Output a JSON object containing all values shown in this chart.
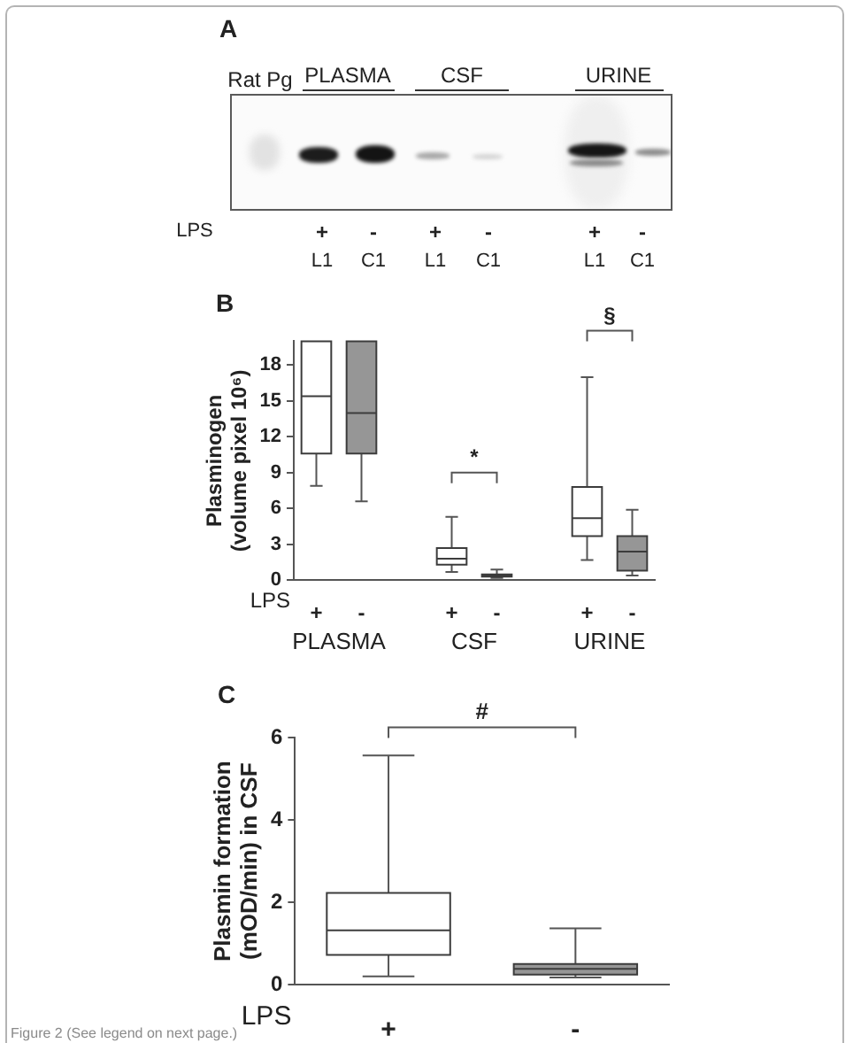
{
  "chart_data": [
    {
      "type": "other",
      "title": "A",
      "annotations": [
        "Rat Pg",
        "PLASMA",
        "CSF",
        "URINE",
        "LPS",
        "+",
        "-",
        "+",
        "-",
        "+",
        "-",
        "L1",
        "C1",
        "L1",
        "C1",
        "L1",
        "C1"
      ]
    },
    {
      "type": "box",
      "title": "B",
      "ylabel": "Plasminogen (volume pixel 10⁶)",
      "xlabel": "LPS",
      "categories": [
        "+",
        "-",
        null,
        "+",
        "-",
        null,
        "+",
        "-"
      ],
      "boxes": [
        {
          "low": 7.9,
          "q1": 10.6,
          "median": 15.4,
          "q3": 20,
          "high": 20
        },
        {
          "low": 6.6,
          "q1": 10.6,
          "median": 14,
          "q3": 20,
          "high": 20
        },
        null,
        {
          "low": 0.7,
          "q1": 1.3,
          "median": 1.8,
          "q3": 2.7,
          "high": 5.3
        },
        {
          "low": 0.2,
          "q1": 0.3,
          "median": 0.4,
          "q3": 0.5,
          "high": 0.9
        },
        null,
        {
          "low": 1.7,
          "q1": 3.7,
          "median": 5.2,
          "q3": 7.8,
          "high": 17
        },
        {
          "low": 0.4,
          "q1": 0.8,
          "median": 2.4,
          "q3": 3.7,
          "high": 5.9
        }
      ],
      "colors": [
        "#ffffff",
        "#969696",
        null,
        "#ffffff",
        "#969696",
        null,
        "#ffffff",
        "#969696"
      ],
      "ylim": [
        0,
        20
      ],
      "yticks": [
        0,
        3,
        6,
        9,
        12,
        15,
        18
      ],
      "annotations": [
        "PLASMA",
        "CSF",
        "URINE",
        "*",
        "§"
      ]
    },
    {
      "type": "box",
      "title": "C",
      "ylabel": "Plasmin formation (mOD/min) in CSF",
      "xlabel": "LPS",
      "categories": [
        "+",
        "-"
      ],
      "boxes": [
        {
          "low": 0.2,
          "q1": 0.72,
          "median": 1.32,
          "q3": 2.23,
          "high": 5.57
        },
        {
          "low": 0.17,
          "q1": 0.24,
          "median": 0.38,
          "q3": 0.5,
          "high": 1.37
        }
      ],
      "colors": [
        "#ffffff",
        "#969696"
      ],
      "ylim": [
        0,
        6
      ],
      "yticks": [
        0,
        2,
        4,
        6
      ],
      "annotations": [
        "#",
        "Figure 2 (See legend on next page.)"
      ]
    }
  ]
}
